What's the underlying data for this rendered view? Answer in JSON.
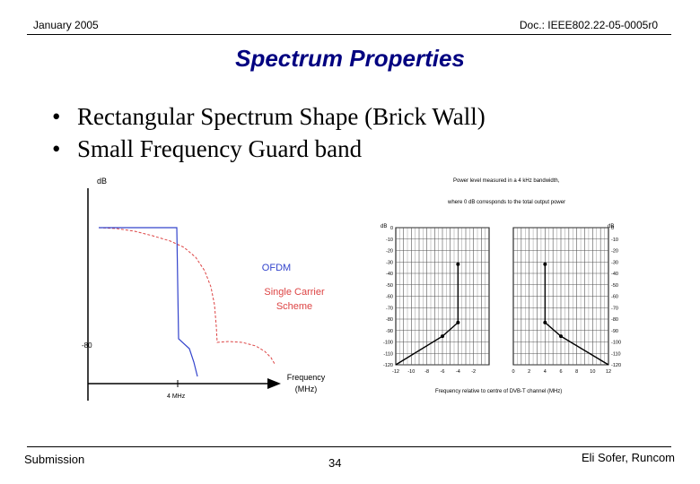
{
  "header": {
    "date": "January 2005",
    "doc": "Doc.: IEEE802.22-05-0005r0"
  },
  "title": "Spectrum Properties",
  "bullets": [
    "Rectangular Spectrum Shape (Brick Wall)",
    "Small Frequency Guard band"
  ],
  "left_figure": {
    "y_unit": "dB",
    "y_mark": "-80",
    "x_mark": "4 MHz",
    "x_label_line1": "Frequency",
    "x_label_line2": "(MHz)",
    "legend_ofdm": "OFDM",
    "legend_sc_line1": "Single Carrier",
    "legend_sc_line2": "Scheme",
    "colors": {
      "ofdm": "#3344cc",
      "single_carrier": "#dd4444"
    }
  },
  "right_figure": {
    "caption_line1": "Power level measured in a 4 kHz bandwidth,",
    "caption_line2": "where 0 dB corresponds to the total output power",
    "y_ticks": [
      "0",
      "-10",
      "-20",
      "-30",
      "-40",
      "-50",
      "-60",
      "-70",
      "-80",
      "-90",
      "-100",
      "-110",
      "-120"
    ],
    "left_y_unit": "dB",
    "right_y_unit": "dB",
    "left_x_ticks": [
      "-12",
      "-10",
      "-8",
      "-6",
      "-4",
      "-2"
    ],
    "right_x_ticks": [
      "0",
      "2",
      "4",
      "6",
      "8",
      "10",
      "12"
    ],
    "x_label": "Frequency relative to centre of DVB-T channel (MHz)"
  },
  "chart_data": [
    {
      "type": "line",
      "title": "",
      "xlabel": "Frequency (MHz)",
      "ylabel": "dB",
      "x_tick_labels": [
        "4 MHz"
      ],
      "y_tick_labels": [
        "-80"
      ],
      "series": [
        {
          "name": "OFDM"
        },
        {
          "name": "Single Carrier Scheme"
        }
      ]
    },
    {
      "type": "line",
      "title": "Power level measured in a 4 kHz bandwidth, where 0 dB corresponds to the total output power",
      "xlabel": "Frequency relative to centre of DVB-T channel (MHz)",
      "ylabel": "dB",
      "ylim": [
        -120,
        0
      ],
      "grid": true,
      "series": [
        {
          "x": [
            -12,
            -6,
            -4,
            -4
          ],
          "y": [
            -120,
            -95,
            -83,
            -32
          ]
        },
        {
          "x": [
            4,
            4,
            6,
            12
          ],
          "y": [
            -32,
            -83,
            -95,
            -120
          ]
        }
      ]
    }
  ],
  "footer": {
    "left": "Submission",
    "page": "34",
    "right": "Eli Sofer, Runcom"
  }
}
